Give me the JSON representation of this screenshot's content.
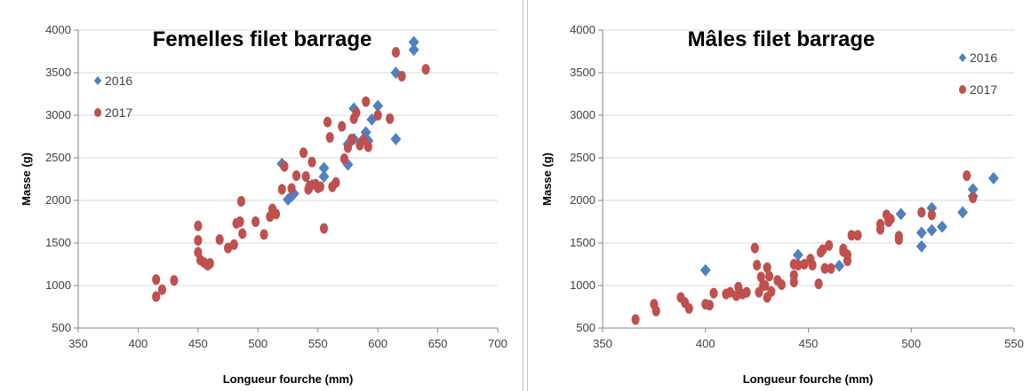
{
  "chart_data": [
    {
      "type": "scatter",
      "title": "Femelles filet barrage",
      "xlabel": "Longueur fourche (mm)",
      "ylabel": "Masse (g)",
      "xlim": [
        350,
        700
      ],
      "ylim": [
        500,
        4000
      ],
      "xticks": [
        "350",
        "400",
        "450",
        "500",
        "550",
        "600",
        "650",
        "700"
      ],
      "yticks": [
        "500",
        "1000",
        "1500",
        "2000",
        "2500",
        "3000",
        "3500",
        "4000"
      ],
      "grid": true,
      "legend_position": "top-left",
      "series": [
        {
          "name": "2016",
          "marker": "diamond",
          "color": "#4f81bd",
          "points": [
            [
              520,
              2430
            ],
            [
              525,
              2010
            ],
            [
              528,
              2050
            ],
            [
              530,
              2080
            ],
            [
              545,
              2180
            ],
            [
              550,
              2150
            ],
            [
              555,
              2280
            ],
            [
              555,
              2380
            ],
            [
              575,
              2420
            ],
            [
              575,
              2660
            ],
            [
              578,
              2700
            ],
            [
              580,
              2720
            ],
            [
              580,
              3080
            ],
            [
              588,
              2720
            ],
            [
              590,
              2800
            ],
            [
              592,
              2700
            ],
            [
              595,
              2950
            ],
            [
              600,
              3110
            ],
            [
              615,
              2720
            ],
            [
              615,
              3500
            ],
            [
              630,
              3860
            ],
            [
              630,
              3770
            ]
          ]
        },
        {
          "name": "2017",
          "marker": "circle",
          "color": "#c0504d",
          "points": [
            [
              415,
              1070
            ],
            [
              415,
              870
            ],
            [
              420,
              950
            ],
            [
              430,
              1060
            ],
            [
              450,
              1700
            ],
            [
              450,
              1530
            ],
            [
              450,
              1390
            ],
            [
              452,
              1300
            ],
            [
              455,
              1270
            ],
            [
              458,
              1240
            ],
            [
              460,
              1260
            ],
            [
              468,
              1540
            ],
            [
              475,
              1440
            ],
            [
              480,
              1480
            ],
            [
              482,
              1730
            ],
            [
              485,
              1750
            ],
            [
              486,
              1990
            ],
            [
              487,
              1610
            ],
            [
              498,
              1750
            ],
            [
              505,
              1600
            ],
            [
              510,
              1810
            ],
            [
              512,
              1900
            ],
            [
              515,
              1840
            ],
            [
              520,
              2130
            ],
            [
              522,
              2400
            ],
            [
              528,
              2140
            ],
            [
              532,
              2290
            ],
            [
              538,
              2560
            ],
            [
              540,
              2280
            ],
            [
              542,
              2130
            ],
            [
              543,
              2170
            ],
            [
              545,
              2450
            ],
            [
              548,
              2190
            ],
            [
              550,
              2150
            ],
            [
              552,
              2160
            ],
            [
              555,
              1670
            ],
            [
              558,
              2920
            ],
            [
              560,
              2740
            ],
            [
              562,
              2160
            ],
            [
              565,
              2210
            ],
            [
              570,
              2870
            ],
            [
              572,
              2490
            ],
            [
              575,
              2620
            ],
            [
              578,
              2720
            ],
            [
              580,
              2960
            ],
            [
              582,
              3030
            ],
            [
              585,
              2650
            ],
            [
              588,
              2710
            ],
            [
              590,
              3160
            ],
            [
              592,
              2630
            ],
            [
              600,
              3000
            ],
            [
              610,
              2960
            ],
            [
              615,
              3740
            ],
            [
              620,
              3460
            ],
            [
              640,
              3540
            ]
          ]
        }
      ]
    },
    {
      "type": "scatter",
      "title": "Mâles filet barrage",
      "xlabel": "Longueur fourche (mm)",
      "ylabel": "Masse (g)",
      "xlim": [
        350,
        550
      ],
      "ylim": [
        500,
        4000
      ],
      "xticks": [
        "350",
        "400",
        "450",
        "500",
        "550"
      ],
      "yticks": [
        "500",
        "1000",
        "1500",
        "2000",
        "2500",
        "3000",
        "3500",
        "4000"
      ],
      "grid": true,
      "legend_position": "top-right",
      "series": [
        {
          "name": "2016",
          "marker": "diamond",
          "color": "#4f81bd",
          "points": [
            [
              400,
              1180
            ],
            [
              445,
              1360
            ],
            [
              465,
              1230
            ],
            [
              495,
              1840
            ],
            [
              505,
              1460
            ],
            [
              505,
              1620
            ],
            [
              510,
              1910
            ],
            [
              510,
              1650
            ],
            [
              515,
              1690
            ],
            [
              525,
              1860
            ],
            [
              530,
              2130
            ],
            [
              530,
              2050
            ],
            [
              540,
              2260
            ]
          ]
        },
        {
          "name": "2017",
          "marker": "circle",
          "color": "#c0504d",
          "points": [
            [
              366,
              600
            ],
            [
              375,
              780
            ],
            [
              376,
              700
            ],
            [
              388,
              860
            ],
            [
              390,
              800
            ],
            [
              392,
              730
            ],
            [
              400,
              780
            ],
            [
              402,
              770
            ],
            [
              404,
              910
            ],
            [
              410,
              900
            ],
            [
              412,
              920
            ],
            [
              415,
              880
            ],
            [
              416,
              980
            ],
            [
              418,
              900
            ],
            [
              420,
              920
            ],
            [
              424,
              1440
            ],
            [
              425,
              1240
            ],
            [
              426,
              920
            ],
            [
              427,
              1100
            ],
            [
              428,
              1000
            ],
            [
              429,
              1000
            ],
            [
              430,
              860
            ],
            [
              430,
              1210
            ],
            [
              431,
              1110
            ],
            [
              432,
              930
            ],
            [
              435,
              1060
            ],
            [
              437,
              1010
            ],
            [
              443,
              1250
            ],
            [
              443,
              1040
            ],
            [
              443,
              1120
            ],
            [
              445,
              1240
            ],
            [
              448,
              1250
            ],
            [
              451,
              1310
            ],
            [
              452,
              1240
            ],
            [
              455,
              1020
            ],
            [
              456,
              1390
            ],
            [
              457,
              1420
            ],
            [
              458,
              1200
            ],
            [
              460,
              1470
            ],
            [
              461,
              1200
            ],
            [
              467,
              1400
            ],
            [
              467,
              1430
            ],
            [
              469,
              1290
            ],
            [
              469,
              1360
            ],
            [
              471,
              1590
            ],
            [
              474,
              1590
            ],
            [
              485,
              1660
            ],
            [
              485,
              1720
            ],
            [
              488,
              1830
            ],
            [
              489,
              1750
            ],
            [
              490,
              1780
            ],
            [
              494,
              1580
            ],
            [
              494,
              1540
            ],
            [
              505,
              1860
            ],
            [
              510,
              1830
            ],
            [
              527,
              2290
            ],
            [
              530,
              2030
            ]
          ]
        }
      ]
    }
  ]
}
